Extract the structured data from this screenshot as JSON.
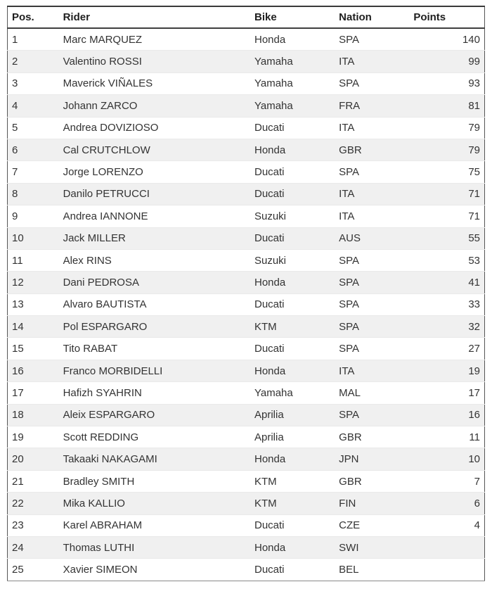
{
  "colors": {
    "row_alt_background": "#f0f0f0",
    "row_background": "#ffffff",
    "border_dark": "#3a3a3a",
    "text": "#333333",
    "header_text": "#1f1f1f"
  },
  "table": {
    "columns": [
      {
        "key": "pos",
        "label": "Pos."
      },
      {
        "key": "rider",
        "label": "Rider"
      },
      {
        "key": "bike",
        "label": "Bike"
      },
      {
        "key": "nation",
        "label": "Nation"
      },
      {
        "key": "points",
        "label": "Points"
      }
    ],
    "rows": [
      {
        "pos": "1",
        "rider": "Marc MARQUEZ",
        "bike": "Honda",
        "nation": "SPA",
        "points": "140"
      },
      {
        "pos": "2",
        "rider": "Valentino ROSSI",
        "bike": "Yamaha",
        "nation": "ITA",
        "points": "99"
      },
      {
        "pos": "3",
        "rider": "Maverick VIÑALES",
        "bike": "Yamaha",
        "nation": "SPA",
        "points": "93"
      },
      {
        "pos": "4",
        "rider": "Johann ZARCO",
        "bike": "Yamaha",
        "nation": "FRA",
        "points": "81"
      },
      {
        "pos": "5",
        "rider": "Andrea DOVIZIOSO",
        "bike": "Ducati",
        "nation": "ITA",
        "points": "79"
      },
      {
        "pos": "6",
        "rider": "Cal CRUTCHLOW",
        "bike": "Honda",
        "nation": "GBR",
        "points": "79"
      },
      {
        "pos": "7",
        "rider": "Jorge LORENZO",
        "bike": "Ducati",
        "nation": "SPA",
        "points": "75"
      },
      {
        "pos": "8",
        "rider": "Danilo PETRUCCI",
        "bike": "Ducati",
        "nation": "ITA",
        "points": "71"
      },
      {
        "pos": "9",
        "rider": "Andrea IANNONE",
        "bike": "Suzuki",
        "nation": "ITA",
        "points": "71"
      },
      {
        "pos": "10",
        "rider": "Jack MILLER",
        "bike": "Ducati",
        "nation": "AUS",
        "points": "55"
      },
      {
        "pos": "11",
        "rider": "Alex RINS",
        "bike": "Suzuki",
        "nation": "SPA",
        "points": "53"
      },
      {
        "pos": "12",
        "rider": "Dani PEDROSA",
        "bike": "Honda",
        "nation": "SPA",
        "points": "41"
      },
      {
        "pos": "13",
        "rider": "Alvaro BAUTISTA",
        "bike": "Ducati",
        "nation": "SPA",
        "points": "33"
      },
      {
        "pos": "14",
        "rider": "Pol ESPARGARO",
        "bike": "KTM",
        "nation": "SPA",
        "points": "32"
      },
      {
        "pos": "15",
        "rider": "Tito RABAT",
        "bike": "Ducati",
        "nation": "SPA",
        "points": "27"
      },
      {
        "pos": "16",
        "rider": "Franco MORBIDELLI",
        "bike": "Honda",
        "nation": "ITA",
        "points": "19"
      },
      {
        "pos": "17",
        "rider": "Hafizh SYAHRIN",
        "bike": "Yamaha",
        "nation": "MAL",
        "points": "17"
      },
      {
        "pos": "18",
        "rider": "Aleix ESPARGARO",
        "bike": "Aprilia",
        "nation": "SPA",
        "points": "16"
      },
      {
        "pos": "19",
        "rider": "Scott REDDING",
        "bike": "Aprilia",
        "nation": "GBR",
        "points": "11"
      },
      {
        "pos": "20",
        "rider": "Takaaki NAKAGAMI",
        "bike": "Honda",
        "nation": "JPN",
        "points": "10"
      },
      {
        "pos": "21",
        "rider": "Bradley SMITH",
        "bike": "KTM",
        "nation": "GBR",
        "points": "7"
      },
      {
        "pos": "22",
        "rider": "Mika KALLIO",
        "bike": "KTM",
        "nation": "FIN",
        "points": "6"
      },
      {
        "pos": "23",
        "rider": "Karel ABRAHAM",
        "bike": "Ducati",
        "nation": "CZE",
        "points": "4"
      },
      {
        "pos": "24",
        "rider": "Thomas LUTHI",
        "bike": "Honda",
        "nation": "SWI",
        "points": ""
      },
      {
        "pos": "25",
        "rider": "Xavier SIMEON",
        "bike": "Ducati",
        "nation": "BEL",
        "points": ""
      }
    ]
  }
}
